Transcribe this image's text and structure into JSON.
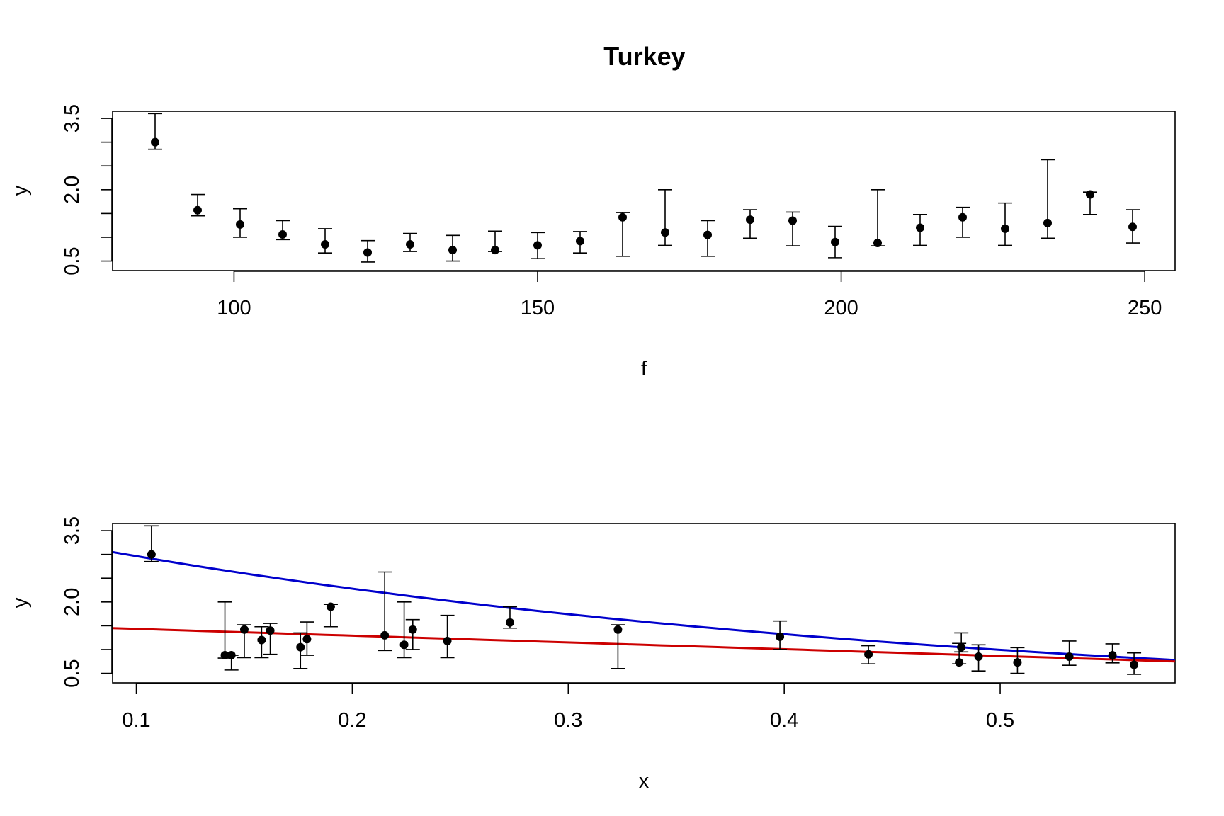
{
  "chart_data": [
    {
      "type": "scatter",
      "title": "Turkey",
      "xlabel": "f",
      "ylabel": "y",
      "xlim": [
        80,
        255
      ],
      "ylim": [
        0.3,
        3.65
      ],
      "x_ticks": [
        "100",
        "150",
        "200",
        "250"
      ],
      "x_tick_values": [
        100,
        150,
        200,
        250
      ],
      "y_tick_labels": [
        "0.5",
        "2.0",
        "3.5"
      ],
      "y_tick_values": [
        0.5,
        2.0,
        3.5
      ],
      "y_minor_ticks": [
        1.0,
        1.5,
        2.5,
        3.0
      ],
      "points": [
        {
          "x": 87,
          "y": 3.0,
          "lo": 2.85,
          "hi": 3.6
        },
        {
          "x": 94,
          "y": 1.57,
          "lo": 1.45,
          "hi": 1.9
        },
        {
          "x": 101,
          "y": 1.27,
          "lo": 1.0,
          "hi": 1.6
        },
        {
          "x": 108,
          "y": 1.06,
          "lo": 0.95,
          "hi": 1.35
        },
        {
          "x": 115,
          "y": 0.85,
          "lo": 0.67,
          "hi": 1.18
        },
        {
          "x": 122,
          "y": 0.68,
          "lo": 0.48,
          "hi": 0.93
        },
        {
          "x": 129,
          "y": 0.85,
          "lo": 0.7,
          "hi": 1.08
        },
        {
          "x": 136,
          "y": 0.73,
          "lo": 0.5,
          "hi": 1.04
        },
        {
          "x": 143,
          "y": 0.73,
          "lo": 0.7,
          "hi": 1.13
        },
        {
          "x": 150,
          "y": 0.83,
          "lo": 0.55,
          "hi": 1.1
        },
        {
          "x": 157,
          "y": 0.92,
          "lo": 0.67,
          "hi": 1.12
        },
        {
          "x": 164,
          "y": 1.42,
          "lo": 0.6,
          "hi": 1.52
        },
        {
          "x": 171,
          "y": 1.1,
          "lo": 0.83,
          "hi": 2.0
        },
        {
          "x": 178,
          "y": 1.05,
          "lo": 0.6,
          "hi": 1.35
        },
        {
          "x": 185,
          "y": 1.37,
          "lo": 0.98,
          "hi": 1.58
        },
        {
          "x": 192,
          "y": 1.35,
          "lo": 0.82,
          "hi": 1.53
        },
        {
          "x": 199,
          "y": 0.9,
          "lo": 0.57,
          "hi": 1.23
        },
        {
          "x": 206,
          "y": 0.88,
          "lo": 0.82,
          "hi": 2.0
        },
        {
          "x": 213,
          "y": 1.2,
          "lo": 0.83,
          "hi": 1.48
        },
        {
          "x": 220,
          "y": 1.42,
          "lo": 1.0,
          "hi": 1.63
        },
        {
          "x": 227,
          "y": 1.18,
          "lo": 0.83,
          "hi": 1.72
        },
        {
          "x": 234,
          "y": 1.3,
          "lo": 0.98,
          "hi": 2.63
        },
        {
          "x": 241,
          "y": 1.9,
          "lo": 1.48,
          "hi": 1.95
        },
        {
          "x": 248,
          "y": 1.22,
          "lo": 0.88,
          "hi": 1.58
        }
      ]
    },
    {
      "type": "scatter",
      "title": "",
      "xlabel": "x",
      "ylabel": "y",
      "xlim": [
        0.089,
        0.581
      ],
      "ylim": [
        0.3,
        3.65
      ],
      "x_ticks": [
        "0.1",
        "0.2",
        "0.3",
        "0.4",
        "0.5"
      ],
      "x_tick_values": [
        0.1,
        0.2,
        0.3,
        0.4,
        0.5
      ],
      "y_tick_labels": [
        "0.5",
        "2.0",
        "3.5"
      ],
      "y_tick_values": [
        0.5,
        2.0,
        3.5
      ],
      "y_minor_ticks": [
        1.0,
        1.5,
        2.5,
        3.0
      ],
      "points": [
        {
          "x": 0.107,
          "y": 3.0,
          "lo": 2.85,
          "hi": 3.6
        },
        {
          "x": 0.141,
          "y": 0.88,
          "lo": 0.82,
          "hi": 2.0
        },
        {
          "x": 0.144,
          "y": 0.88,
          "lo": 0.57,
          "hi": 0.88
        },
        {
          "x": 0.15,
          "y": 1.42,
          "lo": 0.83,
          "hi": 1.52
        },
        {
          "x": 0.158,
          "y": 1.2,
          "lo": 0.83,
          "hi": 1.48
        },
        {
          "x": 0.162,
          "y": 1.4,
          "lo": 0.9,
          "hi": 1.55
        },
        {
          "x": 0.176,
          "y": 1.05,
          "lo": 0.6,
          "hi": 1.35
        },
        {
          "x": 0.179,
          "y": 1.22,
          "lo": 0.88,
          "hi": 1.58
        },
        {
          "x": 0.19,
          "y": 1.9,
          "lo": 1.48,
          "hi": 1.95
        },
        {
          "x": 0.215,
          "y": 1.3,
          "lo": 0.98,
          "hi": 2.63
        },
        {
          "x": 0.224,
          "y": 1.1,
          "lo": 0.83,
          "hi": 2.0
        },
        {
          "x": 0.228,
          "y": 1.42,
          "lo": 1.0,
          "hi": 1.63
        },
        {
          "x": 0.244,
          "y": 1.18,
          "lo": 0.83,
          "hi": 1.72
        },
        {
          "x": 0.273,
          "y": 1.57,
          "lo": 1.45,
          "hi": 1.9
        },
        {
          "x": 0.323,
          "y": 1.42,
          "lo": 0.6,
          "hi": 1.52
        },
        {
          "x": 0.398,
          "y": 1.27,
          "lo": 1.0,
          "hi": 1.6
        },
        {
          "x": 0.439,
          "y": 0.9,
          "lo": 0.7,
          "hi": 1.08
        },
        {
          "x": 0.481,
          "y": 0.73,
          "lo": 0.7,
          "hi": 1.13
        },
        {
          "x": 0.482,
          "y": 1.05,
          "lo": 0.95,
          "hi": 1.35
        },
        {
          "x": 0.49,
          "y": 0.85,
          "lo": 0.55,
          "hi": 1.1
        },
        {
          "x": 0.508,
          "y": 0.73,
          "lo": 0.5,
          "hi": 1.04
        },
        {
          "x": 0.532,
          "y": 0.85,
          "lo": 0.67,
          "hi": 1.18
        },
        {
          "x": 0.552,
          "y": 0.88,
          "lo": 0.72,
          "hi": 1.12
        },
        {
          "x": 0.562,
          "y": 0.68,
          "lo": 0.48,
          "hi": 0.93
        }
      ],
      "curves": [
        {
          "color": "#0000cc",
          "x": [
            0.089,
            0.581
          ],
          "y": [
            3.05,
            0.78
          ]
        },
        {
          "color": "#cc0000",
          "x": [
            0.089,
            0.581
          ],
          "y": [
            1.45,
            0.75
          ]
        }
      ]
    }
  ]
}
